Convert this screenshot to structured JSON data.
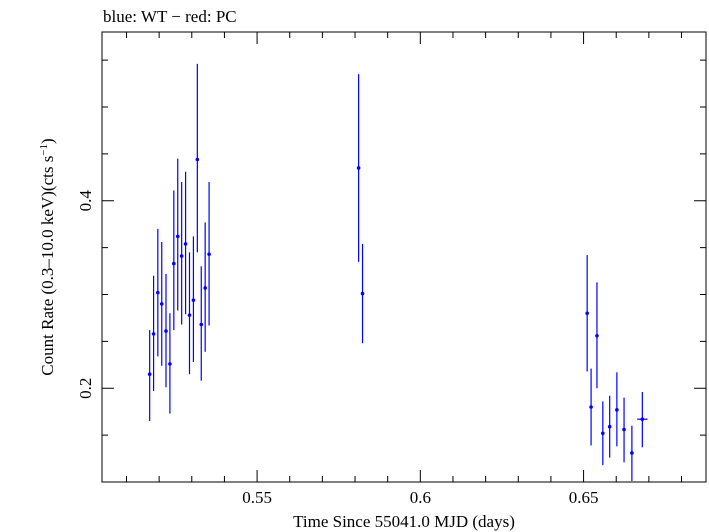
{
  "chart_data": {
    "type": "scatter",
    "title": "blue: WT − red: PC",
    "xlabel": "Time Since 55041.0 MJD (days)",
    "ylabel_main": "Count Rate (0.3–10.0 keV)(cts s",
    "ylabel_sup": "−1",
    "ylabel_close": ")",
    "xlim": [
      0.5025,
      0.6875
    ],
    "ylim": [
      0.1,
      0.58
    ],
    "xticks": [
      0.55,
      0.6,
      0.65
    ],
    "xtick_labels": [
      "0.55",
      "0.6",
      "0.65"
    ],
    "yticks": [
      0.2,
      0.4
    ],
    "ytick_labels": [
      "0.2",
      "0.4"
    ],
    "series": [
      {
        "name": "WT",
        "color": "#0000ff",
        "points": [
          {
            "x": 0.5171,
            "y": 0.215,
            "lo": 0.165,
            "hi": 0.262
          },
          {
            "x": 0.5183,
            "y": 0.258,
            "lo": 0.197,
            "hi": 0.32
          },
          {
            "x": 0.5196,
            "y": 0.302,
            "lo": 0.234,
            "hi": 0.37
          },
          {
            "x": 0.5208,
            "y": 0.29,
            "lo": 0.224,
            "hi": 0.356
          },
          {
            "x": 0.5221,
            "y": 0.261,
            "lo": 0.201,
            "hi": 0.322
          },
          {
            "x": 0.5233,
            "y": 0.226,
            "lo": 0.173,
            "hi": 0.28
          },
          {
            "x": 0.5245,
            "y": 0.333,
            "lo": 0.262,
            "hi": 0.411
          },
          {
            "x": 0.5257,
            "y": 0.362,
            "lo": 0.283,
            "hi": 0.445
          },
          {
            "x": 0.5269,
            "y": 0.341,
            "lo": 0.268,
            "hi": 0.42
          },
          {
            "x": 0.5281,
            "y": 0.354,
            "lo": 0.279,
            "hi": 0.431
          },
          {
            "x": 0.5293,
            "y": 0.278,
            "lo": 0.215,
            "hi": 0.345
          },
          {
            "x": 0.5305,
            "y": 0.294,
            "lo": 0.228,
            "hi": 0.362
          },
          {
            "x": 0.5317,
            "y": 0.444,
            "lo": 0.345,
            "hi": 0.546
          },
          {
            "x": 0.5329,
            "y": 0.268,
            "lo": 0.208,
            "hi": 0.33
          },
          {
            "x": 0.5341,
            "y": 0.307,
            "lo": 0.239,
            "hi": 0.377
          },
          {
            "x": 0.5353,
            "y": 0.343,
            "lo": 0.267,
            "hi": 0.42
          },
          {
            "x": 0.5811,
            "y": 0.435,
            "lo": 0.335,
            "hi": 0.535
          },
          {
            "x": 0.5823,
            "y": 0.301,
            "lo": 0.248,
            "hi": 0.354
          },
          {
            "x": 0.6511,
            "y": 0.28,
            "lo": 0.218,
            "hi": 0.342
          },
          {
            "x": 0.6523,
            "y": 0.18,
            "lo": 0.139,
            "hi": 0.221
          },
          {
            "x": 0.6541,
            "y": 0.256,
            "lo": 0.2,
            "hi": 0.313
          },
          {
            "x": 0.6559,
            "y": 0.152,
            "lo": 0.118,
            "hi": 0.186
          },
          {
            "x": 0.658,
            "y": 0.159,
            "lo": 0.126,
            "hi": 0.192
          },
          {
            "x": 0.6602,
            "y": 0.177,
            "lo": 0.138,
            "hi": 0.217
          },
          {
            "x": 0.6624,
            "y": 0.156,
            "lo": 0.121,
            "hi": 0.19
          },
          {
            "x": 0.6648,
            "y": 0.131,
            "lo": 0.101,
            "hi": 0.16
          },
          {
            "x": 0.668,
            "y": 0.167,
            "lo": 0.137,
            "hi": 0.196,
            "xerr": 0.0016
          }
        ]
      }
    ]
  }
}
